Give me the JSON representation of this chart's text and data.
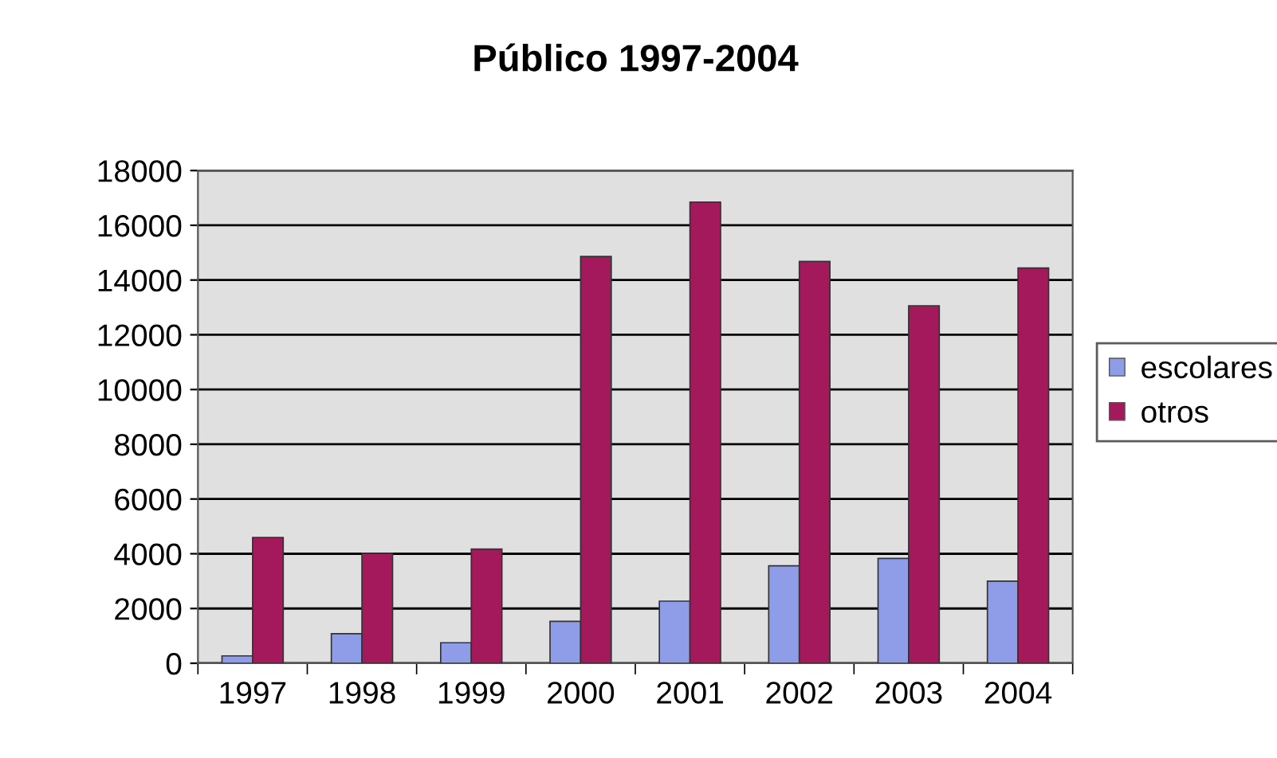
{
  "chart_data": {
    "type": "bar",
    "title": "Público 1997-2004",
    "categories": [
      "1997",
      "1998",
      "1999",
      "2000",
      "2001",
      "2002",
      "2003",
      "2004"
    ],
    "series": [
      {
        "name": "escolares",
        "color": "#8f9ce8",
        "values": [
          270,
          1080,
          750,
          1530,
          2270,
          3560,
          3830,
          3000
        ]
      },
      {
        "name": "otros",
        "color": "#a3195b",
        "values": [
          4590,
          4010,
          4170,
          14860,
          16850,
          14680,
          13060,
          14440
        ]
      }
    ],
    "ylim": [
      0,
      18000
    ],
    "yticks": [
      0,
      2000,
      4000,
      6000,
      8000,
      10000,
      12000,
      14000,
      16000,
      18000
    ],
    "grid": "y",
    "legend": "right"
  }
}
